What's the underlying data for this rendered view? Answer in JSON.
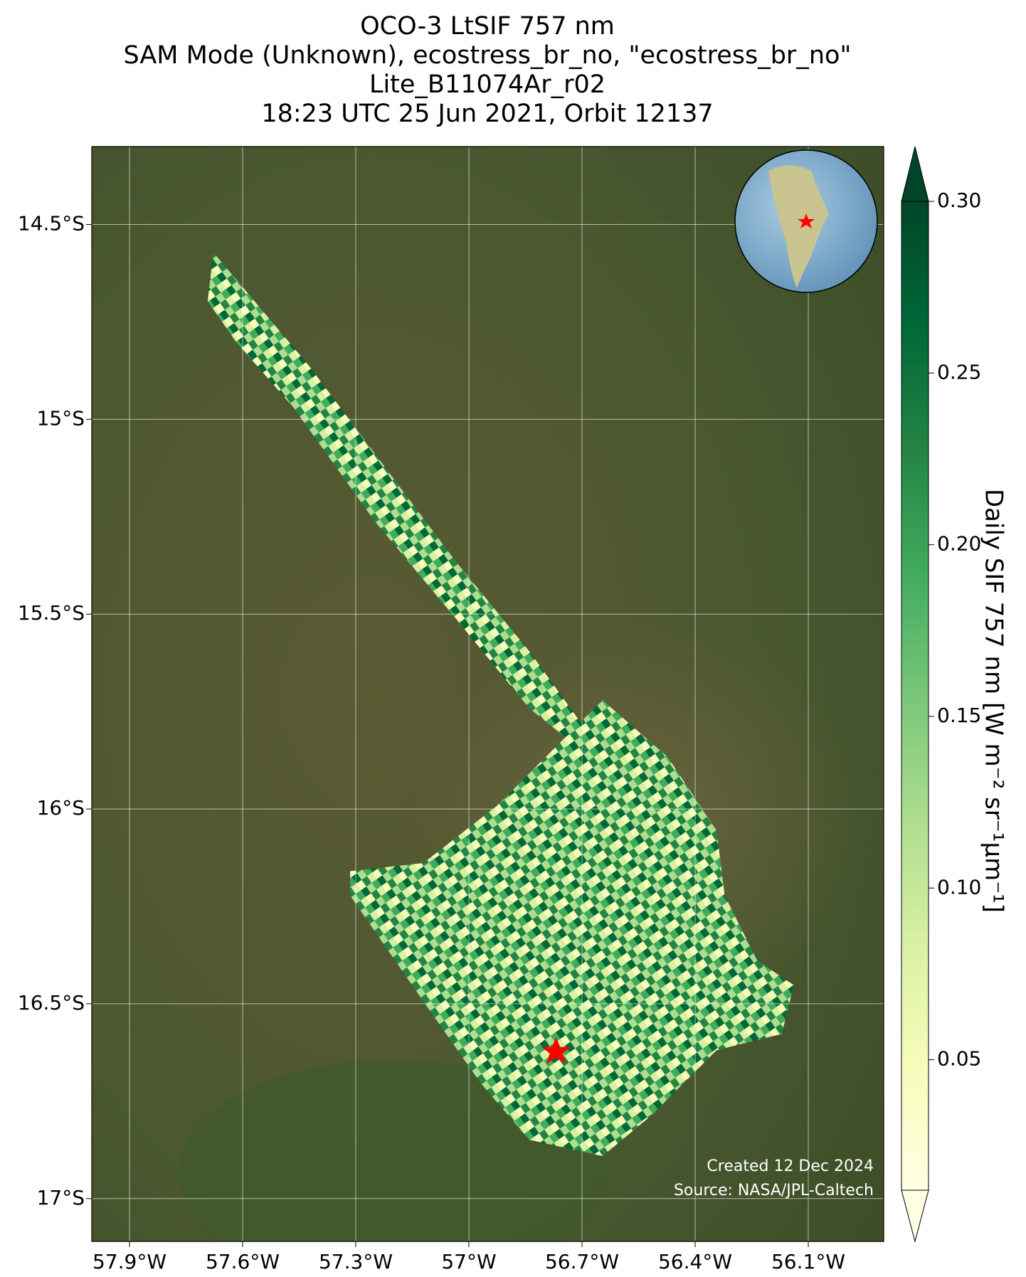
{
  "chart_data": {
    "type": "map",
    "title": [
      "OCO-3 LtSIF 757 nm",
      "SAM Mode (Unknown), ecostress_br_no, \"ecostress_br_no\"",
      "Lite_B11074Ar_r02",
      "18:23 UTC 25 Jun 2021, Orbit 12137"
    ],
    "xlim": [
      -58.0,
      -55.9
    ],
    "ylim": [
      -17.11,
      -14.3
    ],
    "xticks": [
      {
        "value": -57.9,
        "label": "57.9°W"
      },
      {
        "value": -57.6,
        "label": "57.6°W"
      },
      {
        "value": -57.3,
        "label": "57.3°W"
      },
      {
        "value": -57.0,
        "label": "57°W"
      },
      {
        "value": -56.7,
        "label": "56.7°W"
      },
      {
        "value": -56.4,
        "label": "56.4°W"
      },
      {
        "value": -56.1,
        "label": "56.1°W"
      }
    ],
    "yticks": [
      {
        "value": -14.5,
        "label": "14.5°S"
      },
      {
        "value": -15.0,
        "label": "15°S"
      },
      {
        "value": -15.5,
        "label": "15.5°S"
      },
      {
        "value": -16.0,
        "label": "16°S"
      },
      {
        "value": -16.5,
        "label": "16.5°S"
      },
      {
        "value": -17.0,
        "label": "17°S"
      }
    ],
    "grid": true,
    "colorbar": {
      "label": "Daily SIF 757 nm [W m⁻² sr⁻¹μm⁻¹]",
      "clim": [
        0.012,
        0.3
      ],
      "colors": [
        "#ffffe5",
        "#f7fcb9",
        "#d9f0a3",
        "#addd8e",
        "#78c679",
        "#41ab5d",
        "#238443",
        "#006837",
        "#004529"
      ],
      "ticks": [
        0.05,
        {
          "value": 0.1,
          "label": "0.10"
        },
        0.15,
        {
          "value": 0.2,
          "label": "0.20"
        },
        0.25,
        {
          "value": 0.3,
          "label": "0.30"
        }
      ]
    },
    "annotations": [
      "Created 12 Dec 2024",
      "Source: NASA/JPL-Caltech"
    ]
  }
}
